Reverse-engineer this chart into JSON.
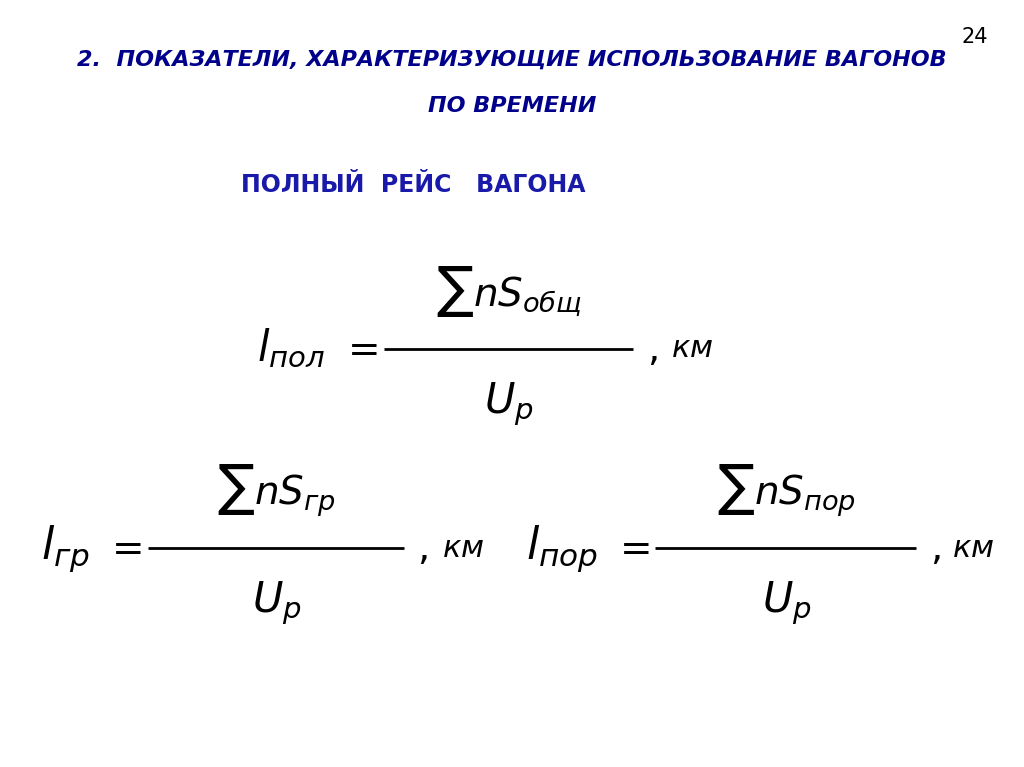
{
  "background_color": "#ffffff",
  "page_number": "24",
  "title_line1": "2.  ПОКАЗАТЕЛИ, ХАРАКТЕРИЗУЮЩИЕ ИСПОЛЬЗОВАНИЕ ВАГОНОВ",
  "title_line2": "ПО ВРЕМЕНИ",
  "subtitle": "ПОЛНЫЙ  РЕЙС   ВАГОНА",
  "title_color": "#00008B",
  "subtitle_color": "#1a1aaa",
  "page_num_color": "#000000",
  "title_fontsize": 16,
  "subtitle_fontsize": 17,
  "formula_color": "#000000",
  "formula_fontsize": 28,
  "km_fontsize": 22,
  "fig_width": 10.24,
  "fig_height": 7.67,
  "dpi": 100
}
